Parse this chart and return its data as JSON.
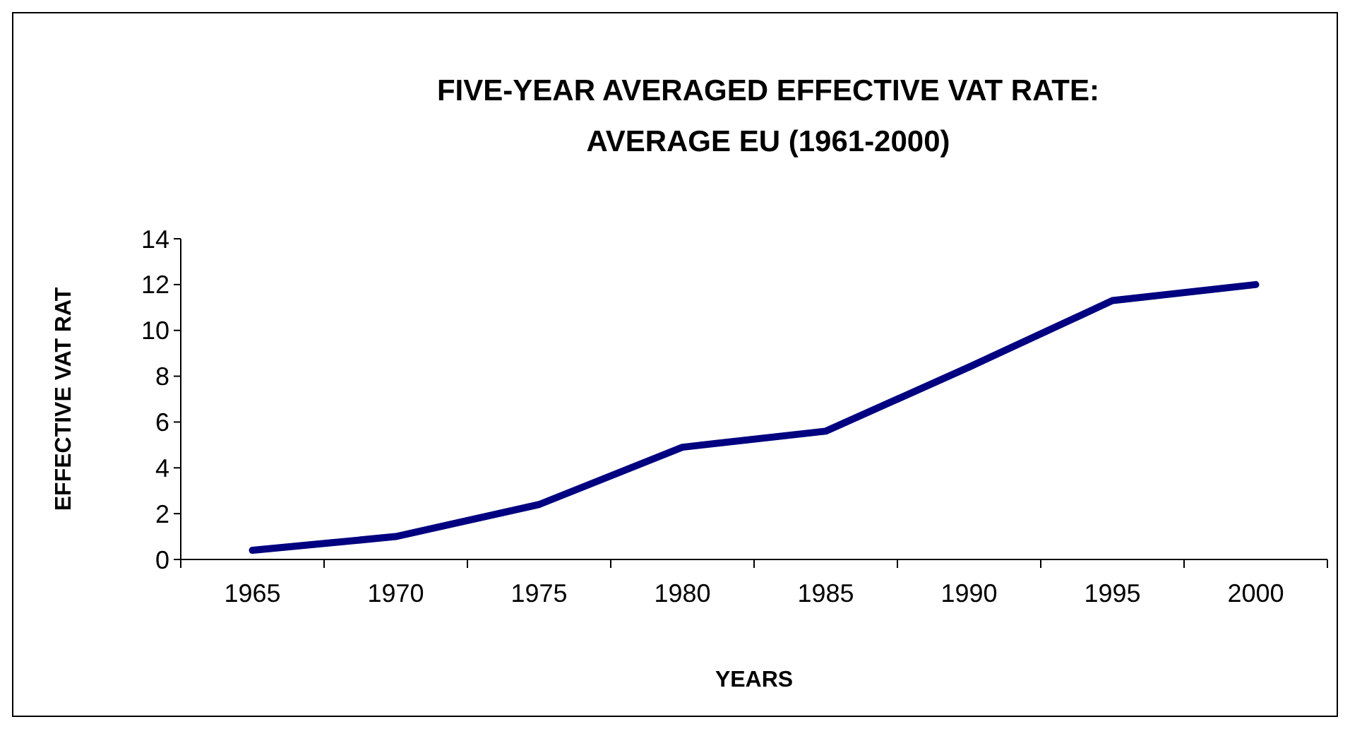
{
  "chart_data": {
    "type": "line",
    "title": "FIVE-YEAR AVERAGED EFFECTIVE VAT RATE: AVERAGE EU (1961-2000)",
    "xlabel": "YEARS",
    "ylabel": "EFFECTIVE VAT RAT",
    "categories": [
      "1965",
      "1970",
      "1975",
      "1980",
      "1985",
      "1990",
      "1995",
      "2000"
    ],
    "series": [
      {
        "color": "#000080",
        "values": [
          0.4,
          1.0,
          2.4,
          4.9,
          5.6,
          8.4,
          11.3,
          12.0
        ]
      }
    ],
    "ylim": [
      0,
      14
    ],
    "yticks": [
      0,
      2,
      4,
      6,
      8,
      10,
      12,
      14
    ],
    "grid": false,
    "marker": "none",
    "line_style": "solid"
  }
}
